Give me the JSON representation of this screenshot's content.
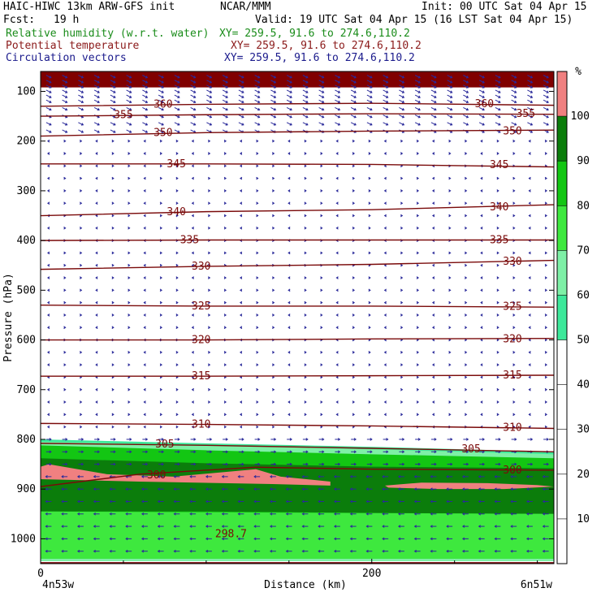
{
  "header": {
    "model": "HAIC-HIWC 13km ARW-GFS init",
    "institution": "NCAR/MMM",
    "init": "Init: 00 UTC Sat 04 Apr 15",
    "fcst_label": "Fcst:",
    "fcst_value": "19 h",
    "valid": "Valid: 19 UTC Sat 04 Apr 15 (16 LST Sat 04 Apr 15)"
  },
  "fields": [
    {
      "name": "Relative humidity (w.r.t. water)",
      "xy": "XY= 259.5, 91.6 to 274.6,110.2",
      "color": "#1a8c1a"
    },
    {
      "name": "Potential temperature",
      "xy": "XY= 259.5, 91.6 to 274.6,110.2",
      "color": "#8b1a1a"
    },
    {
      "name": "Circulation vectors",
      "xy": "XY= 259.5, 91.6 to 274.6,110.2",
      "color": "#1a1a8c"
    }
  ],
  "chart_data": {
    "type": "heatmap",
    "ylabel": "Pressure (hPa)",
    "xlabel": "Distance (km)",
    "x_left_label": "4n53w",
    "x_right_label": "6n51w",
    "xlim": [
      0,
      310
    ],
    "ylim": [
      1050,
      60
    ],
    "x_ticks": [
      {
        "value": 0,
        "label": "0"
      },
      {
        "value": 200,
        "label": "200"
      }
    ],
    "y_ticks": [
      {
        "value": 100,
        "label": "100"
      },
      {
        "value": 200,
        "label": "200"
      },
      {
        "value": 300,
        "label": "300"
      },
      {
        "value": 400,
        "label": "400"
      },
      {
        "value": 500,
        "label": "500"
      },
      {
        "value": 600,
        "label": "600"
      },
      {
        "value": 700,
        "label": "700"
      },
      {
        "value": 800,
        "label": "800"
      },
      {
        "value": 900,
        "label": "900"
      },
      {
        "value": 1000,
        "label": "1000"
      }
    ],
    "colorbar": {
      "unit": "%",
      "levels": [
        {
          "label": "10",
          "value": 10
        },
        {
          "label": "20",
          "value": 20
        },
        {
          "label": "30",
          "value": 30
        },
        {
          "label": "40",
          "value": 40
        },
        {
          "label": "50",
          "value": 50
        },
        {
          "label": "60",
          "value": 60
        },
        {
          "label": "70",
          "value": 70
        },
        {
          "label": "80",
          "value": 80
        },
        {
          "label": "90",
          "value": 90
        },
        {
          "label": "100",
          "value": 100
        }
      ],
      "bands": [
        {
          "from": 50,
          "to": 60,
          "color": "#3de89a"
        },
        {
          "from": 60,
          "to": 70,
          "color": "#7ef0a6"
        },
        {
          "from": 70,
          "to": 80,
          "color": "#3ee83e"
        },
        {
          "from": 80,
          "to": 90,
          "color": "#13c613"
        },
        {
          "from": 90,
          "to": 100,
          "color": "#0b7d0b"
        },
        {
          "from": 100,
          "to": 110,
          "color": "#f08080"
        }
      ]
    },
    "theta_contours": [
      {
        "label": "298.7",
        "points": [
          [
            0,
            1048
          ],
          [
            310,
            1048
          ]
        ],
        "label_at": [
          115,
          990
        ]
      },
      {
        "label": "300",
        "points": [
          [
            0,
            895
          ],
          [
            60,
            870
          ],
          [
            130,
            856
          ],
          [
            200,
            860
          ],
          [
            310,
            862
          ]
        ],
        "label_at": [
          [
            70,
            872
          ],
          [
            285,
            862
          ]
        ]
      },
      {
        "label": "305",
        "points": [
          [
            0,
            808
          ],
          [
            100,
            812
          ],
          [
            200,
            818
          ],
          [
            310,
            825
          ]
        ],
        "label_at": [
          [
            75,
            810
          ],
          [
            260,
            820
          ]
        ]
      },
      {
        "label": "310",
        "points": [
          [
            0,
            768
          ],
          [
            100,
            770
          ],
          [
            200,
            773
          ],
          [
            310,
            778
          ]
        ],
        "label_at": [
          [
            97,
            770
          ],
          [
            285,
            776
          ]
        ]
      },
      {
        "label": "315",
        "points": [
          [
            0,
            673
          ],
          [
            100,
            673
          ],
          [
            200,
            672
          ],
          [
            310,
            671
          ]
        ],
        "label_at": [
          [
            97,
            673
          ],
          [
            285,
            671
          ]
        ]
      },
      {
        "label": "320",
        "points": [
          [
            0,
            600
          ],
          [
            100,
            600
          ],
          [
            200,
            598
          ],
          [
            310,
            597
          ]
        ],
        "label_at": [
          [
            97,
            600
          ],
          [
            285,
            598
          ]
        ]
      },
      {
        "label": "325",
        "points": [
          [
            0,
            530
          ],
          [
            100,
            532
          ],
          [
            200,
            532
          ],
          [
            310,
            534
          ]
        ],
        "label_at": [
          [
            97,
            532
          ],
          [
            285,
            533
          ]
        ]
      },
      {
        "label": "330",
        "points": [
          [
            0,
            458
          ],
          [
            100,
            452
          ],
          [
            200,
            448
          ],
          [
            310,
            440
          ]
        ],
        "label_at": [
          [
            97,
            452
          ],
          [
            285,
            442
          ]
        ]
      },
      {
        "label": "335",
        "points": [
          [
            0,
            400
          ],
          [
            100,
            399
          ],
          [
            200,
            399
          ],
          [
            310,
            399
          ]
        ],
        "label_at": [
          [
            90,
            399
          ],
          [
            277,
            399
          ]
        ]
      },
      {
        "label": "340",
        "points": [
          [
            0,
            350
          ],
          [
            100,
            342
          ],
          [
            200,
            338
          ],
          [
            310,
            328
          ]
        ],
        "label_at": [
          [
            82,
            343
          ],
          [
            277,
            333
          ]
        ]
      },
      {
        "label": "345",
        "points": [
          [
            0,
            246
          ],
          [
            100,
            246
          ],
          [
            200,
            247
          ],
          [
            310,
            252
          ]
        ],
        "label_at": [
          [
            82,
            246
          ],
          [
            277,
            248
          ]
        ]
      },
      {
        "label": "350",
        "points": [
          [
            0,
            190
          ],
          [
            100,
            183
          ],
          [
            200,
            180
          ],
          [
            310,
            178
          ]
        ],
        "label_at": [
          [
            74,
            183
          ],
          [
            285,
            180
          ]
        ]
      },
      {
        "label": "355",
        "points": [
          [
            0,
            150
          ],
          [
            100,
            147
          ],
          [
            200,
            145
          ],
          [
            310,
            146
          ]
        ],
        "label_at": [
          [
            50,
            147
          ],
          [
            293,
            145
          ]
        ]
      },
      {
        "label": "360",
        "points": [
          [
            0,
            130
          ],
          [
            100,
            126
          ],
          [
            200,
            124
          ],
          [
            310,
            128
          ]
        ],
        "label_at": [
          [
            74,
            126
          ],
          [
            268,
            125
          ]
        ]
      }
    ],
    "rh_regions": [
      {
        "rh": 105,
        "color": "#800000",
        "top": [
          [
            0,
            60
          ],
          [
            310,
            60
          ]
        ],
        "bottom": [
          [
            0,
            92
          ],
          [
            310,
            92
          ]
        ]
      },
      {
        "rh": 55,
        "color": "#3de89a",
        "top": [
          [
            0,
            800
          ],
          [
            100,
            808
          ],
          [
            200,
            815
          ],
          [
            310,
            825
          ]
        ],
        "bottom": [
          [
            0,
            1045
          ],
          [
            310,
            1045
          ]
        ]
      },
      {
        "rh": 65,
        "color": "#7ef0a6",
        "top": [
          [
            0,
            805
          ],
          [
            100,
            812
          ],
          [
            200,
            820
          ],
          [
            310,
            830
          ]
        ],
        "bottom": [
          [
            0,
            1045
          ],
          [
            310,
            1045
          ]
        ]
      },
      {
        "rh": 85,
        "color": "#13c613",
        "top": [
          [
            0,
            812
          ],
          [
            100,
            822
          ],
          [
            200,
            830
          ],
          [
            310,
            838
          ]
        ],
        "bottom": [
          [
            0,
            1040
          ],
          [
            310,
            1040
          ]
        ]
      },
      {
        "rh": 95,
        "color": "#0b7d0b",
        "top": [
          [
            0,
            838
          ],
          [
            100,
            848
          ],
          [
            200,
            855
          ],
          [
            310,
            858
          ]
        ],
        "bottom": [
          [
            0,
            945
          ],
          [
            100,
            945
          ],
          [
            200,
            948
          ],
          [
            310,
            950
          ]
        ]
      },
      {
        "rh": 75,
        "color": "#3ee83e",
        "top": [
          [
            0,
            945
          ],
          [
            310,
            950
          ]
        ],
        "bottom": [
          [
            0,
            1040
          ],
          [
            310,
            1040
          ]
        ]
      },
      {
        "rh": 105,
        "color": "#f08080",
        "top": [
          [
            0,
            855
          ],
          [
            5,
            850
          ],
          [
            40,
            870
          ],
          [
            80,
            875
          ],
          [
            130,
            860
          ],
          [
            145,
            875
          ],
          [
            175,
            885
          ],
          [
            175,
            893
          ],
          [
            140,
            890
          ],
          [
            60,
            885
          ],
          [
            0,
            880
          ]
        ],
        "bottom": null
      },
      {
        "rh": 105,
        "color": "#f08080",
        "top": [
          [
            208,
            893
          ],
          [
            230,
            887
          ],
          [
            270,
            888
          ],
          [
            300,
            892
          ],
          [
            310,
            895
          ],
          [
            280,
            900
          ],
          [
            240,
            900
          ],
          [
            210,
            897
          ]
        ],
        "bottom": null
      }
    ],
    "vector_field": {
      "description_free": true,
      "columns": 32,
      "levels_hpa": [
        70,
        80,
        90,
        100,
        110,
        120,
        135,
        150,
        165,
        180,
        200,
        225,
        250,
        275,
        300,
        325,
        350,
        375,
        400,
        425,
        450,
        475,
        500,
        525,
        550,
        575,
        600,
        625,
        650,
        675,
        700,
        725,
        750,
        775,
        800,
        825,
        850,
        875,
        900,
        925,
        950,
        975,
        1000,
        1025
      ]
    }
  }
}
